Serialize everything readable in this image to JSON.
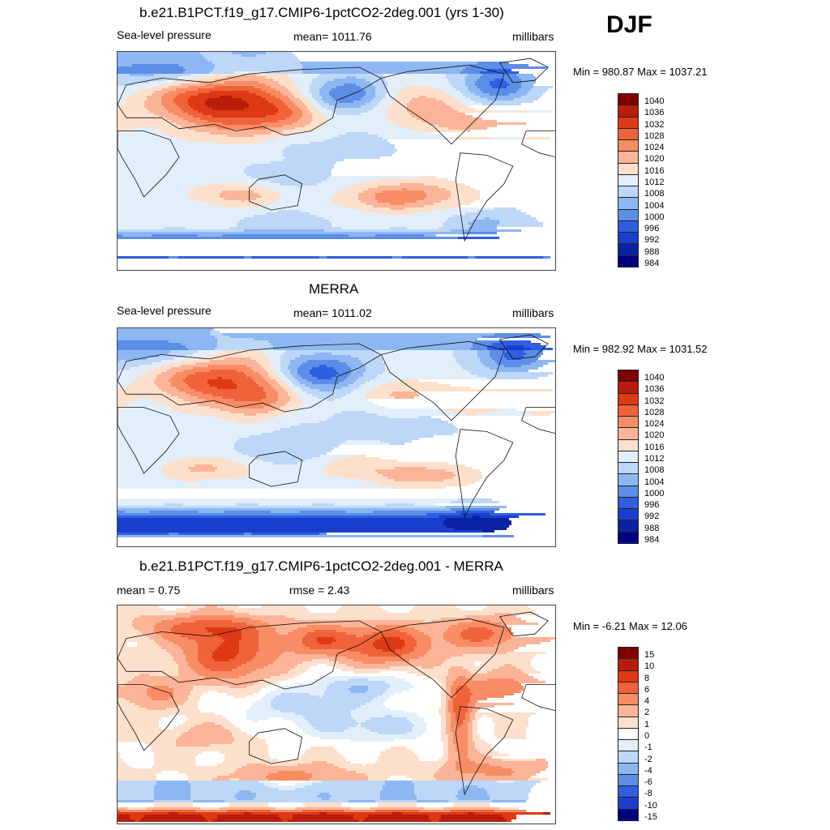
{
  "season": "DJF",
  "panels": [
    {
      "title": "b.e21.B1PCT.f19_g17.CMIP6-1pctCO2-2deg.001 (yrs 1-30)",
      "left_label": "Sea-level pressure",
      "center_label": "mean= 1011.76",
      "right_label": "millibars",
      "minmax": "Min = 980.87 Max = 1037.21",
      "palette": "abs",
      "colorbar_labels": [
        "1040",
        "1036",
        "1032",
        "1028",
        "1024",
        "1020",
        "1016",
        "1012",
        "1008",
        "1004",
        "1000",
        "996",
        "992",
        "988",
        "984"
      ]
    },
    {
      "title": "MERRA",
      "left_label": "Sea-level pressure",
      "center_label": "mean= 1011.02",
      "right_label": "millibars",
      "minmax": "Min = 982.92 Max = 1031.52",
      "palette": "abs",
      "colorbar_labels": [
        "1040",
        "1036",
        "1032",
        "1028",
        "1024",
        "1020",
        "1016",
        "1012",
        "1008",
        "1004",
        "1000",
        "996",
        "992",
        "988",
        "984"
      ]
    },
    {
      "title": "b.e21.B1PCT.f19_g17.CMIP6-1pctCO2-2deg.001 - MERRA",
      "left_label": "mean =   0.75",
      "center_label": "rmse =   2.43",
      "right_label": "millibars",
      "minmax": "Min =  -6.21 Max =  12.06",
      "palette": "diff",
      "colorbar_labels": [
        "15",
        "10",
        "8",
        "6",
        "4",
        "2",
        "1",
        "0",
        "-1",
        "-2",
        "-4",
        "-6",
        "-8",
        "-10",
        "-15"
      ]
    }
  ],
  "colors": {
    "abs": [
      "#800000",
      "#b81d0b",
      "#dd3a14",
      "#f0623a",
      "#f88d65",
      "#fbb497",
      "#fde0cc",
      "#e2effb",
      "#bcd7f7",
      "#8db7f2",
      "#5d8ee7",
      "#2f5ee0",
      "#1a3fce",
      "#0a22a6",
      "#000080"
    ],
    "diff": [
      "#800000",
      "#b81d0b",
      "#dd3a14",
      "#f0623a",
      "#f88d65",
      "#fbb497",
      "#fde0cc",
      "#ffffff",
      "#e2effb",
      "#bcd7f7",
      "#8db7f2",
      "#5d8ee7",
      "#2f5ee0",
      "#1a3fce",
      "#000080"
    ],
    "coast": "#111111"
  }
}
